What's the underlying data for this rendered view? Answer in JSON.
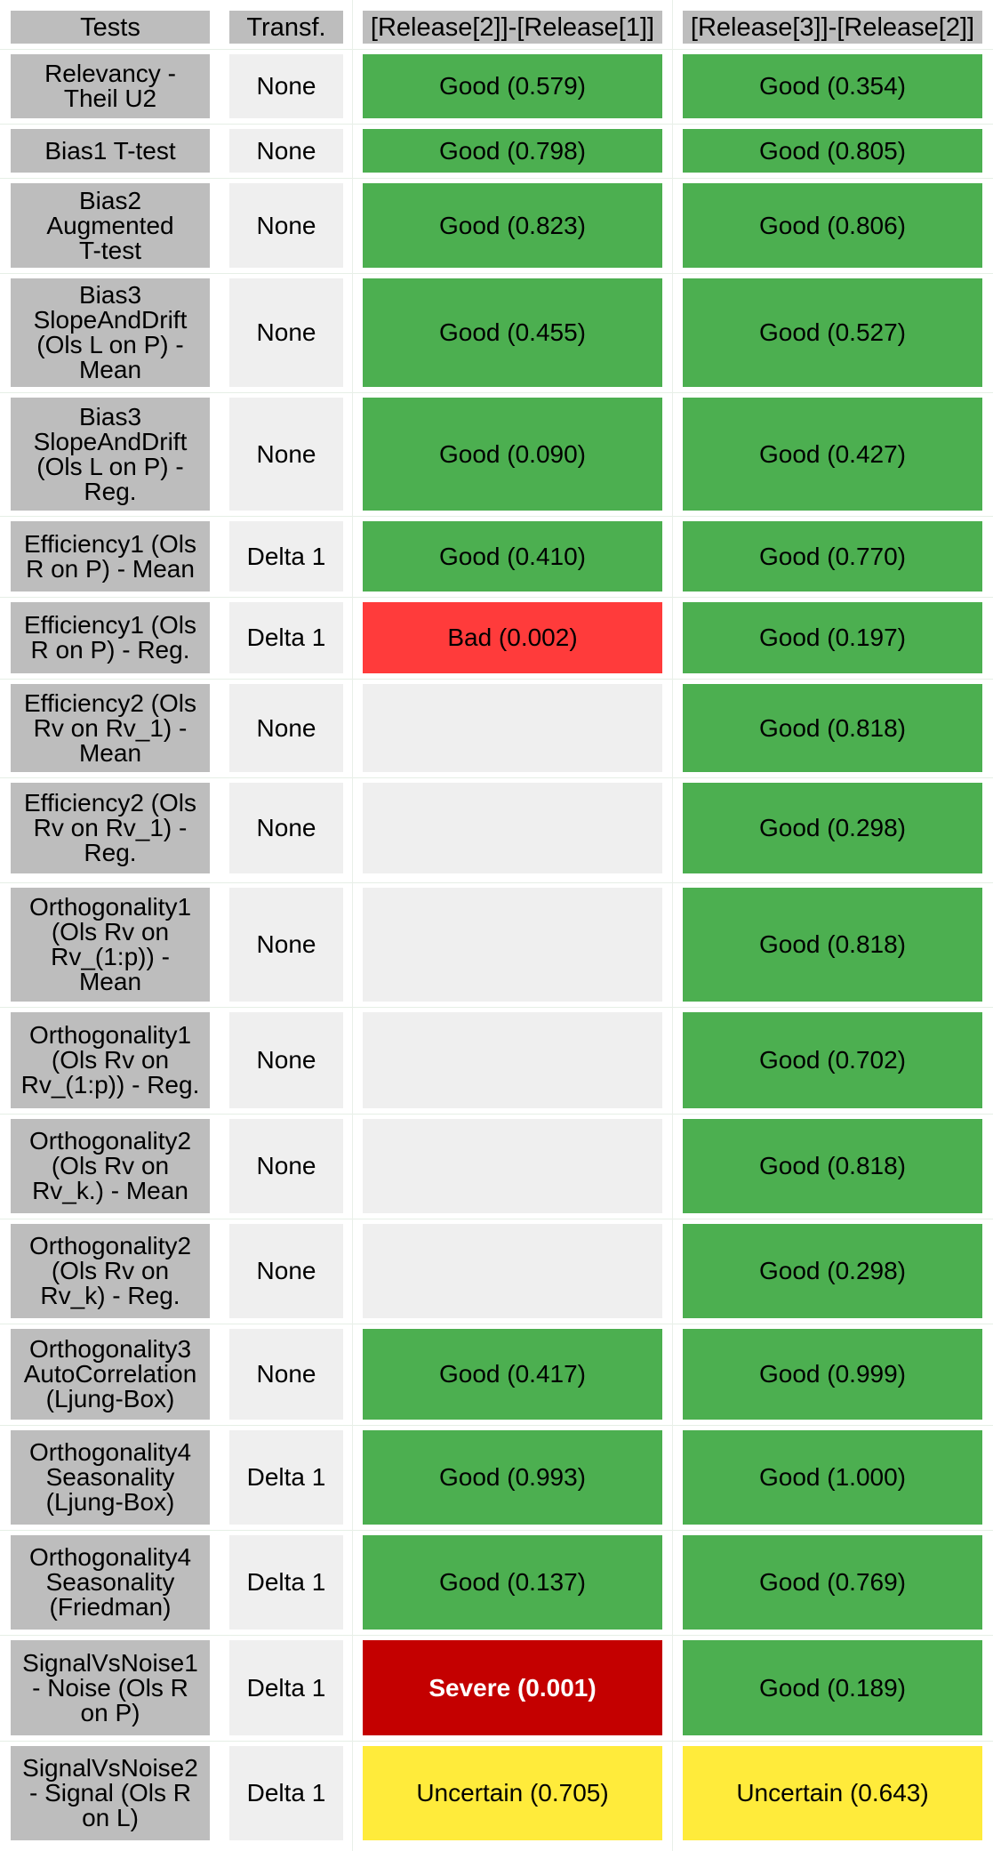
{
  "table": {
    "headers": [
      "Tests",
      "Transf.",
      "[Release[2]]-[Release[1]]",
      "[Release[3]]-[Release[2]]"
    ],
    "rows": [
      {
        "test": "Relevancy -\nTheil U2",
        "transf": "None",
        "r21": {
          "text": "Good (0.579)",
          "status": "good"
        },
        "r32": {
          "text": "Good (0.354)",
          "status": "good"
        }
      },
      {
        "test": "Bias1 T-test",
        "transf": "None",
        "r21": {
          "text": "Good (0.798)",
          "status": "good"
        },
        "r32": {
          "text": "Good (0.805)",
          "status": "good"
        }
      },
      {
        "test": "Bias2\nAugmented\nT-test",
        "transf": "None",
        "r21": {
          "text": "Good (0.823)",
          "status": "good"
        },
        "r32": {
          "text": "Good (0.806)",
          "status": "good"
        }
      },
      {
        "test": "Bias3\nSlopeAndDrift\n(Ols L on P) -\nMean",
        "transf": "None",
        "r21": {
          "text": "Good (0.455)",
          "status": "good"
        },
        "r32": {
          "text": "Good (0.527)",
          "status": "good"
        }
      },
      {
        "test": "Bias3\nSlopeAndDrift\n(Ols L on P) -\nReg.",
        "transf": "None",
        "r21": {
          "text": "Good (0.090)",
          "status": "good"
        },
        "r32": {
          "text": "Good (0.427)",
          "status": "good"
        }
      },
      {
        "test": "Efficiency1 (Ols\nR on P) - Mean",
        "transf": "Delta 1",
        "r21": {
          "text": "Good (0.410)",
          "status": "good"
        },
        "r32": {
          "text": "Good (0.770)",
          "status": "good"
        }
      },
      {
        "test": "Efficiency1 (Ols\nR on P) - Reg.",
        "transf": "Delta 1",
        "r21": {
          "text": "Bad (0.002)",
          "status": "bad"
        },
        "r32": {
          "text": "Good (0.197)",
          "status": "good"
        }
      },
      {
        "test": "Efficiency2 (Ols\nRv on Rv_1) -\nMean",
        "transf": "None",
        "r21": {
          "text": "",
          "status": "empty"
        },
        "r32": {
          "text": "Good (0.818)",
          "status": "good"
        }
      },
      {
        "test": "Efficiency2 (Ols\nRv on Rv_1) -\nReg.",
        "transf": "None",
        "r21": {
          "text": "",
          "status": "empty"
        },
        "r32": {
          "text": "Good (0.298)",
          "status": "good"
        }
      },
      {
        "test": "Orthogonality1\n(Ols Rv on\nRv_(1:p)) -\nMean",
        "transf": "None",
        "r21": {
          "text": "",
          "status": "empty"
        },
        "r32": {
          "text": "Good (0.818)",
          "status": "good"
        }
      },
      {
        "test": "Orthogonality1\n(Ols Rv on\nRv_(1:p)) - Reg.",
        "transf": "None",
        "r21": {
          "text": "",
          "status": "empty"
        },
        "r32": {
          "text": "Good (0.702)",
          "status": "good"
        }
      },
      {
        "test": "Orthogonality2\n(Ols Rv on\nRv_k.) - Mean",
        "transf": "None",
        "r21": {
          "text": "",
          "status": "empty"
        },
        "r32": {
          "text": "Good (0.818)",
          "status": "good"
        }
      },
      {
        "test": "Orthogonality2\n(Ols Rv on\nRv_k) - Reg.",
        "transf": "None",
        "r21": {
          "text": "",
          "status": "empty"
        },
        "r32": {
          "text": "Good (0.298)",
          "status": "good"
        }
      },
      {
        "test": "Orthogonality3\nAutoCorrelation\n(Ljung-Box)",
        "transf": "None",
        "r21": {
          "text": "Good (0.417)",
          "status": "good"
        },
        "r32": {
          "text": "Good (0.999)",
          "status": "good"
        }
      },
      {
        "test": "Orthogonality4\nSeasonality\n(Ljung-Box)",
        "transf": "Delta 1",
        "r21": {
          "text": "Good (0.993)",
          "status": "good"
        },
        "r32": {
          "text": "Good (1.000)",
          "status": "good"
        }
      },
      {
        "test": "Orthogonality4\nSeasonality\n(Friedman)",
        "transf": "Delta 1",
        "r21": {
          "text": "Good (0.137)",
          "status": "good"
        },
        "r32": {
          "text": "Good (0.769)",
          "status": "good"
        }
      },
      {
        "test": "SignalVsNoise1\n- Noise (Ols R\non P)",
        "transf": "Delta 1",
        "r21": {
          "text": "Severe (0.001)",
          "status": "severe"
        },
        "r32": {
          "text": "Good (0.189)",
          "status": "good"
        }
      },
      {
        "test": "SignalVsNoise2\n- Signal (Ols R\non L)",
        "transf": "Delta 1",
        "r21": {
          "text": "Uncertain (0.705)",
          "status": "uncertain"
        },
        "r32": {
          "text": "Uncertain (0.643)",
          "status": "uncertain"
        }
      }
    ]
  },
  "status_colors": {
    "good": "#4caf50",
    "bad": "#ff3b3b",
    "severe": "#c40000",
    "uncertain": "#ffeb3b",
    "empty": "#efefef"
  }
}
